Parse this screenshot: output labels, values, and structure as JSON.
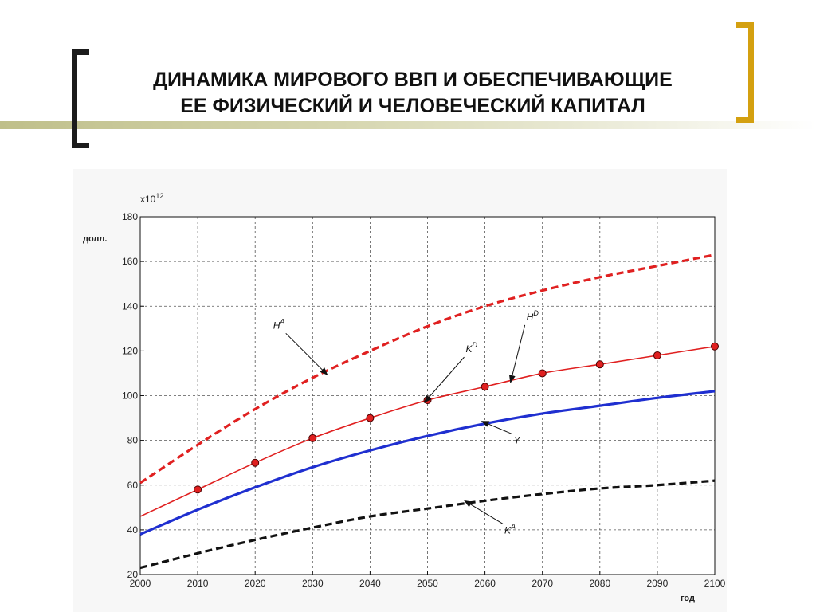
{
  "slide": {
    "title_line1": "ДИНАМИКА МИРОВОГО ВВП И ОБЕСПЕЧИВАЮЩИЕ",
    "title_line2": "ЕЕ ФИЗИЧЕСКИЙ И ЧЕЛОВЕЧЕСКИЙ КАПИТАЛ",
    "left_bracket_color": "#1c1c1c",
    "right_bracket_color": "#d4a010",
    "accent_bar_color": "#bfbf8a"
  },
  "chart_data": {
    "type": "line",
    "title": "",
    "ylabel": "долл.",
    "xlabel": "год",
    "y_scale_note": "x10",
    "y_scale_exponent": "12",
    "xlim": [
      2000,
      2100
    ],
    "ylim": [
      20,
      180
    ],
    "xticks": [
      2000,
      2010,
      2020,
      2030,
      2040,
      2050,
      2060,
      2070,
      2080,
      2090,
      2100
    ],
    "yticks": [
      20,
      40,
      60,
      80,
      100,
      120,
      140,
      160,
      180
    ],
    "grid": true,
    "x": [
      2000,
      2010,
      2020,
      2030,
      2040,
      2050,
      2060,
      2070,
      2080,
      2090,
      2100
    ],
    "series": [
      {
        "name": "H",
        "superscript": "A",
        "color": "#e02020",
        "style": "dashed-thick",
        "values": [
          61,
          78,
          94,
          108,
          120,
          131,
          140,
          147,
          153,
          158,
          163
        ]
      },
      {
        "name": "H",
        "superscript": "D",
        "color": "#e02020",
        "style": "solid-markers",
        "values": [
          46,
          58,
          70,
          81,
          90,
          98,
          104,
          110,
          114,
          118,
          122
        ]
      },
      {
        "name": "Y",
        "superscript": "",
        "color": "#1f2fd0",
        "style": "solid-thick",
        "values": [
          38,
          49,
          59,
          68,
          75.5,
          82,
          87.5,
          92,
          95.5,
          99,
          102
        ]
      },
      {
        "name": "K",
        "superscript": "A",
        "color": "#111111",
        "style": "dashed-thick",
        "values": [
          23,
          29.5,
          35.5,
          41,
          46,
          49.5,
          53,
          56,
          58.5,
          60,
          62
        ]
      }
    ],
    "marker_series": "H^D",
    "marker_x": [
      2010,
      2020,
      2030,
      2040,
      2050,
      2060,
      2070,
      2080,
      2090,
      2100
    ],
    "annotations": [
      {
        "name": "H",
        "superscript": "A",
        "points_to_x": 2032,
        "points_to_series": 0
      },
      {
        "name": "K",
        "superscript": "D",
        "points_to_x": 2050,
        "points_to_series": 1
      },
      {
        "name": "H",
        "superscript": "D",
        "points_to_x": 2065,
        "points_to_series": 1
      },
      {
        "name": "Y",
        "superscript": "",
        "points_to_x": 2060,
        "points_to_series": 2
      },
      {
        "name": "K",
        "superscript": "A",
        "points_to_x": 2057,
        "points_to_series": 3
      }
    ]
  }
}
